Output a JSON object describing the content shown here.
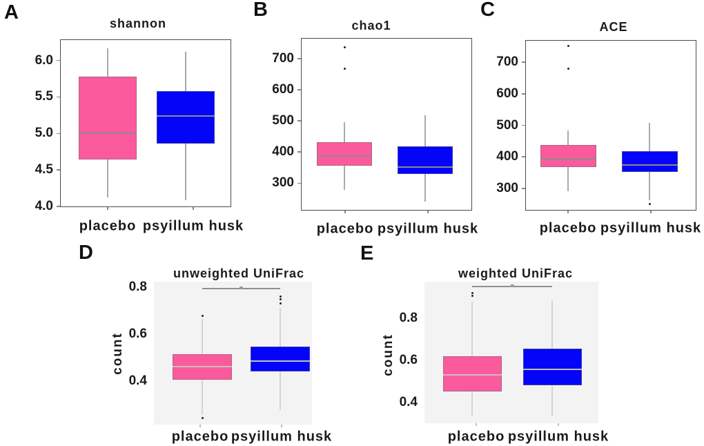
{
  "figure": {
    "description": "Five box plots comparing alpha and beta diversity between placebo and psyillum husk groups",
    "background": "#ffffff"
  },
  "colors": {
    "placebo_box": "#FB5A9C",
    "psyillum_husk_box": "#0404F8",
    "median_line_top_row": "#8c8c8c",
    "median_line_bottom_row": "#c2c2c2",
    "whisker_top_row": "#a9a9a9",
    "whisker_bottom_row": "#d4d4d4",
    "outlier_dot": "#222222",
    "plot_border": "#4a4a4a",
    "gray_panel_background": "#f3f3f3",
    "significance_bar": "#8f8f8f"
  },
  "chart_data": [
    {
      "id": "A",
      "panel_label": "A",
      "type": "box",
      "title": "shannon",
      "ylabel": "",
      "frame": "bordered",
      "grid": false,
      "legend": "none",
      "ylim": [
        3.99,
        6.29
      ],
      "ytick_labels": [
        "6.0",
        "5.5",
        "5.0",
        "4.5",
        "4.0"
      ],
      "ytick_values": [
        6.0,
        5.5,
        5.0,
        4.5,
        4.0
      ],
      "categories": [
        "placebo",
        "psyillum husk"
      ],
      "series": [
        {
          "name": "placebo",
          "color_key": "placebo_box",
          "whisker_low": 4.12,
          "q1": 4.64,
          "median": 5.0,
          "q3": 5.78,
          "whisker_high": 6.17,
          "outliers": []
        },
        {
          "name": "psyillum husk",
          "color_key": "psyillum_husk_box",
          "whisker_low": 4.08,
          "q1": 4.86,
          "median": 5.24,
          "q3": 5.58,
          "whisker_high": 6.12,
          "outliers": []
        }
      ],
      "significance": null
    },
    {
      "id": "B",
      "panel_label": "B",
      "type": "box",
      "title": "chao1",
      "ylabel": "",
      "frame": "bordered",
      "grid": false,
      "legend": "none",
      "ylim": [
        212,
        766
      ],
      "ytick_labels": [
        "700",
        "600",
        "500",
        "400",
        "300"
      ],
      "ytick_values": [
        700,
        600,
        500,
        400,
        300
      ],
      "categories": [
        "placebo",
        "psyillum husk"
      ],
      "series": [
        {
          "name": "placebo",
          "color_key": "placebo_box",
          "whisker_low": 278,
          "q1": 355,
          "median": 388,
          "q3": 432,
          "whisker_high": 495,
          "outliers": [
            737,
            668
          ]
        },
        {
          "name": "psyillum husk",
          "color_key": "psyillum_husk_box",
          "whisker_low": 240,
          "q1": 330,
          "median": 352,
          "q3": 418,
          "whisker_high": 517,
          "outliers": []
        }
      ],
      "significance": null
    },
    {
      "id": "C",
      "panel_label": "C",
      "type": "box",
      "title": "ACE",
      "ylabel": "",
      "frame": "bordered",
      "grid": false,
      "legend": "none",
      "ylim": [
        230,
        770
      ],
      "ytick_labels": [
        "700",
        "600",
        "500",
        "400",
        "300"
      ],
      "ytick_values": [
        700,
        600,
        500,
        400,
        300
      ],
      "categories": [
        "placebo",
        "psyillum husk"
      ],
      "series": [
        {
          "name": "placebo",
          "color_key": "placebo_box",
          "whisker_low": 292,
          "q1": 367,
          "median": 392,
          "q3": 437,
          "whisker_high": 483,
          "outliers": [
            752,
            680
          ]
        },
        {
          "name": "psyillum husk",
          "color_key": "psyillum_husk_box",
          "whisker_low": 262,
          "q1": 353,
          "median": 374,
          "q3": 417,
          "whisker_high": 507,
          "outliers": [
            251
          ]
        }
      ],
      "significance": null
    },
    {
      "id": "D",
      "panel_label": "D",
      "type": "box",
      "title": "unweighted UniFrac",
      "ylabel": "count",
      "frame": "gray",
      "grid": false,
      "legend": "none",
      "ylim": [
        0.215,
        0.824
      ],
      "ytick_labels": [
        "0.8",
        "0.6",
        "0.4"
      ],
      "ytick_values": [
        0.8,
        0.6,
        0.4
      ],
      "categories": [
        "placebo",
        "psyillum husk"
      ],
      "series": [
        {
          "name": "placebo",
          "color_key": "placebo_box",
          "whisker_low": 0.255,
          "q1": 0.405,
          "median": 0.462,
          "q3": 0.515,
          "whisker_high": 0.665,
          "outliers": [
            0.678,
            0.243
          ]
        },
        {
          "name": "psyillum husk",
          "color_key": "psyillum_husk_box",
          "whisker_low": 0.278,
          "q1": 0.443,
          "median": 0.487,
          "q3": 0.548,
          "whisker_high": 0.712,
          "outliers": [
            0.762,
            0.748,
            0.73
          ]
        }
      ],
      "significance": {
        "value": 0.795,
        "between": [
          0,
          1
        ],
        "marker": "*"
      }
    },
    {
      "id": "E",
      "panel_label": "E",
      "type": "box",
      "title": "weighted UniFrac",
      "ylabel": "count",
      "frame": "gray",
      "grid": false,
      "legend": "none",
      "ylim": [
        0.3,
        0.974
      ],
      "ytick_labels": [
        "0.8",
        "0.6",
        "0.4"
      ],
      "ytick_values": [
        0.8,
        0.6,
        0.4
      ],
      "categories": [
        "placebo",
        "psyillum husk"
      ],
      "series": [
        {
          "name": "placebo",
          "color_key": "placebo_box",
          "whisker_low": 0.335,
          "q1": 0.45,
          "median": 0.53,
          "q3": 0.62,
          "whisker_high": 0.88,
          "outliers": [
            0.92,
            0.906
          ]
        },
        {
          "name": "psyillum husk",
          "color_key": "psyillum_husk_box",
          "whisker_low": 0.335,
          "q1": 0.48,
          "median": 0.555,
          "q3": 0.655,
          "whisker_high": 0.885,
          "outliers": []
        }
      ],
      "significance": {
        "value": 0.951,
        "between": [
          0,
          1
        ],
        "marker": "*"
      }
    }
  ]
}
